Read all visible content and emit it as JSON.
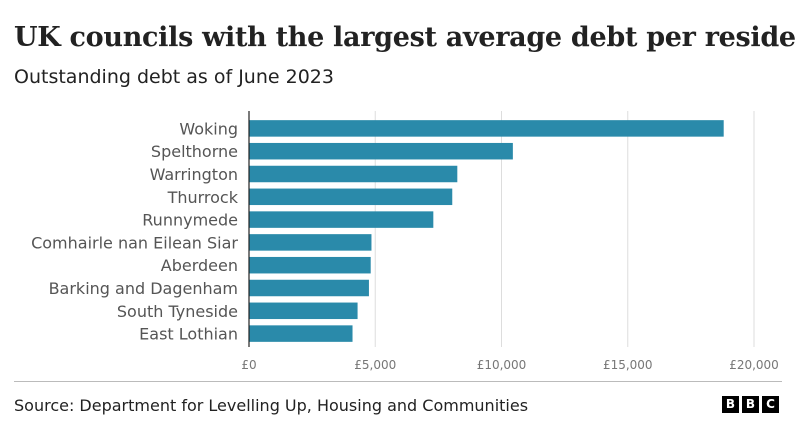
{
  "title": "UK councils with the largest average debt per resident",
  "subtitle": "Outstanding debt as of June 2023",
  "source": "Source: Department for Levelling Up, Housing and Communities",
  "logo": [
    "B",
    "B",
    "C"
  ],
  "colors": {
    "bar": "#2a8aaa",
    "grid": "#dddddd",
    "axis": "#222222",
    "label": "#555555",
    "tick": "#777777"
  },
  "chart_data": {
    "type": "bar",
    "orientation": "horizontal",
    "categories": [
      "Woking",
      "Spelthorne",
      "Warrington",
      "Thurrock",
      "Runnymede",
      "Comhairle nan Eilean Siar",
      "Aberdeen",
      "Barking and Dagenham",
      "South Tyneside",
      "East Lothian"
    ],
    "values": [
      18800,
      10450,
      8250,
      8050,
      7300,
      4850,
      4820,
      4750,
      4300,
      4100
    ],
    "xlim": [
      0,
      20000
    ],
    "xticks": [
      0,
      5000,
      10000,
      15000,
      20000
    ],
    "xtick_labels": [
      "£0",
      "£5,000",
      "£10,000",
      "£15,000",
      "£20,000"
    ],
    "grid": true
  }
}
